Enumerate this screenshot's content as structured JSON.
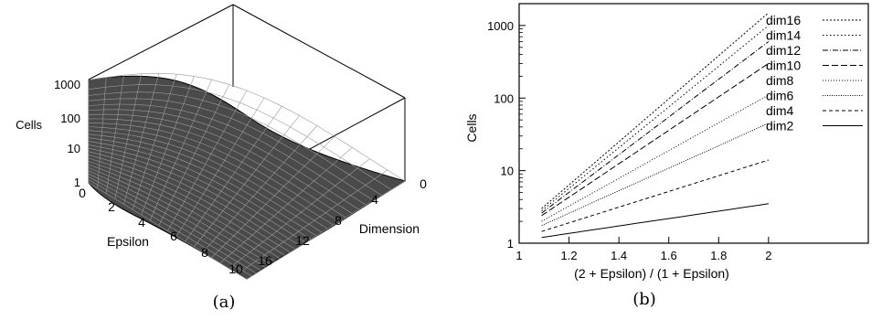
{
  "figure": {
    "caption_a": "(a)",
    "caption_b": "(b)"
  },
  "chart_data": [
    {
      "type": "surface",
      "xlabel": "Epsilon",
      "ylabel": "Dimension",
      "zlabel": "Cells",
      "x_ticks": [
        "0",
        "2",
        "4",
        "6",
        "8",
        "10"
      ],
      "y_ticks": [
        "0",
        "4",
        "8",
        "12",
        "16"
      ],
      "z_ticks": [
        "1",
        "10",
        "100",
        "1000"
      ],
      "xlim": [
        0,
        10
      ],
      "ylim": [
        0,
        16
      ],
      "zlim": [
        1,
        1500
      ],
      "zscale": "log"
    },
    {
      "type": "line",
      "xlabel": "(2 + Epsilon) / (1 + Epsilon)",
      "ylabel": "Cells",
      "xlim": [
        1,
        2.4
      ],
      "ylim": [
        1,
        2000
      ],
      "yscale": "log",
      "x_ticks": [
        "1",
        "1.2",
        "1.4",
        "1.6",
        "1.8",
        "2"
      ],
      "y_ticks": [
        "1",
        "10",
        "100",
        "1000"
      ],
      "legend_position": "top-right",
      "x": [
        1.09,
        2
      ],
      "series": [
        {
          "name": "dim16",
          "values": [
            3.0,
            1500
          ]
        },
        {
          "name": "dim14",
          "values": [
            2.8,
            1000
          ]
        },
        {
          "name": "dim12",
          "values": [
            2.6,
            600
          ]
        },
        {
          "name": "dim10",
          "values": [
            2.4,
            300
          ]
        },
        {
          "name": "dim8",
          "values": [
            2.0,
            110
          ]
        },
        {
          "name": "dim6",
          "values": [
            1.75,
            45
          ]
        },
        {
          "name": "dim4",
          "values": [
            1.45,
            14
          ]
        },
        {
          "name": "dim2",
          "values": [
            1.2,
            3.5
          ]
        }
      ]
    }
  ]
}
